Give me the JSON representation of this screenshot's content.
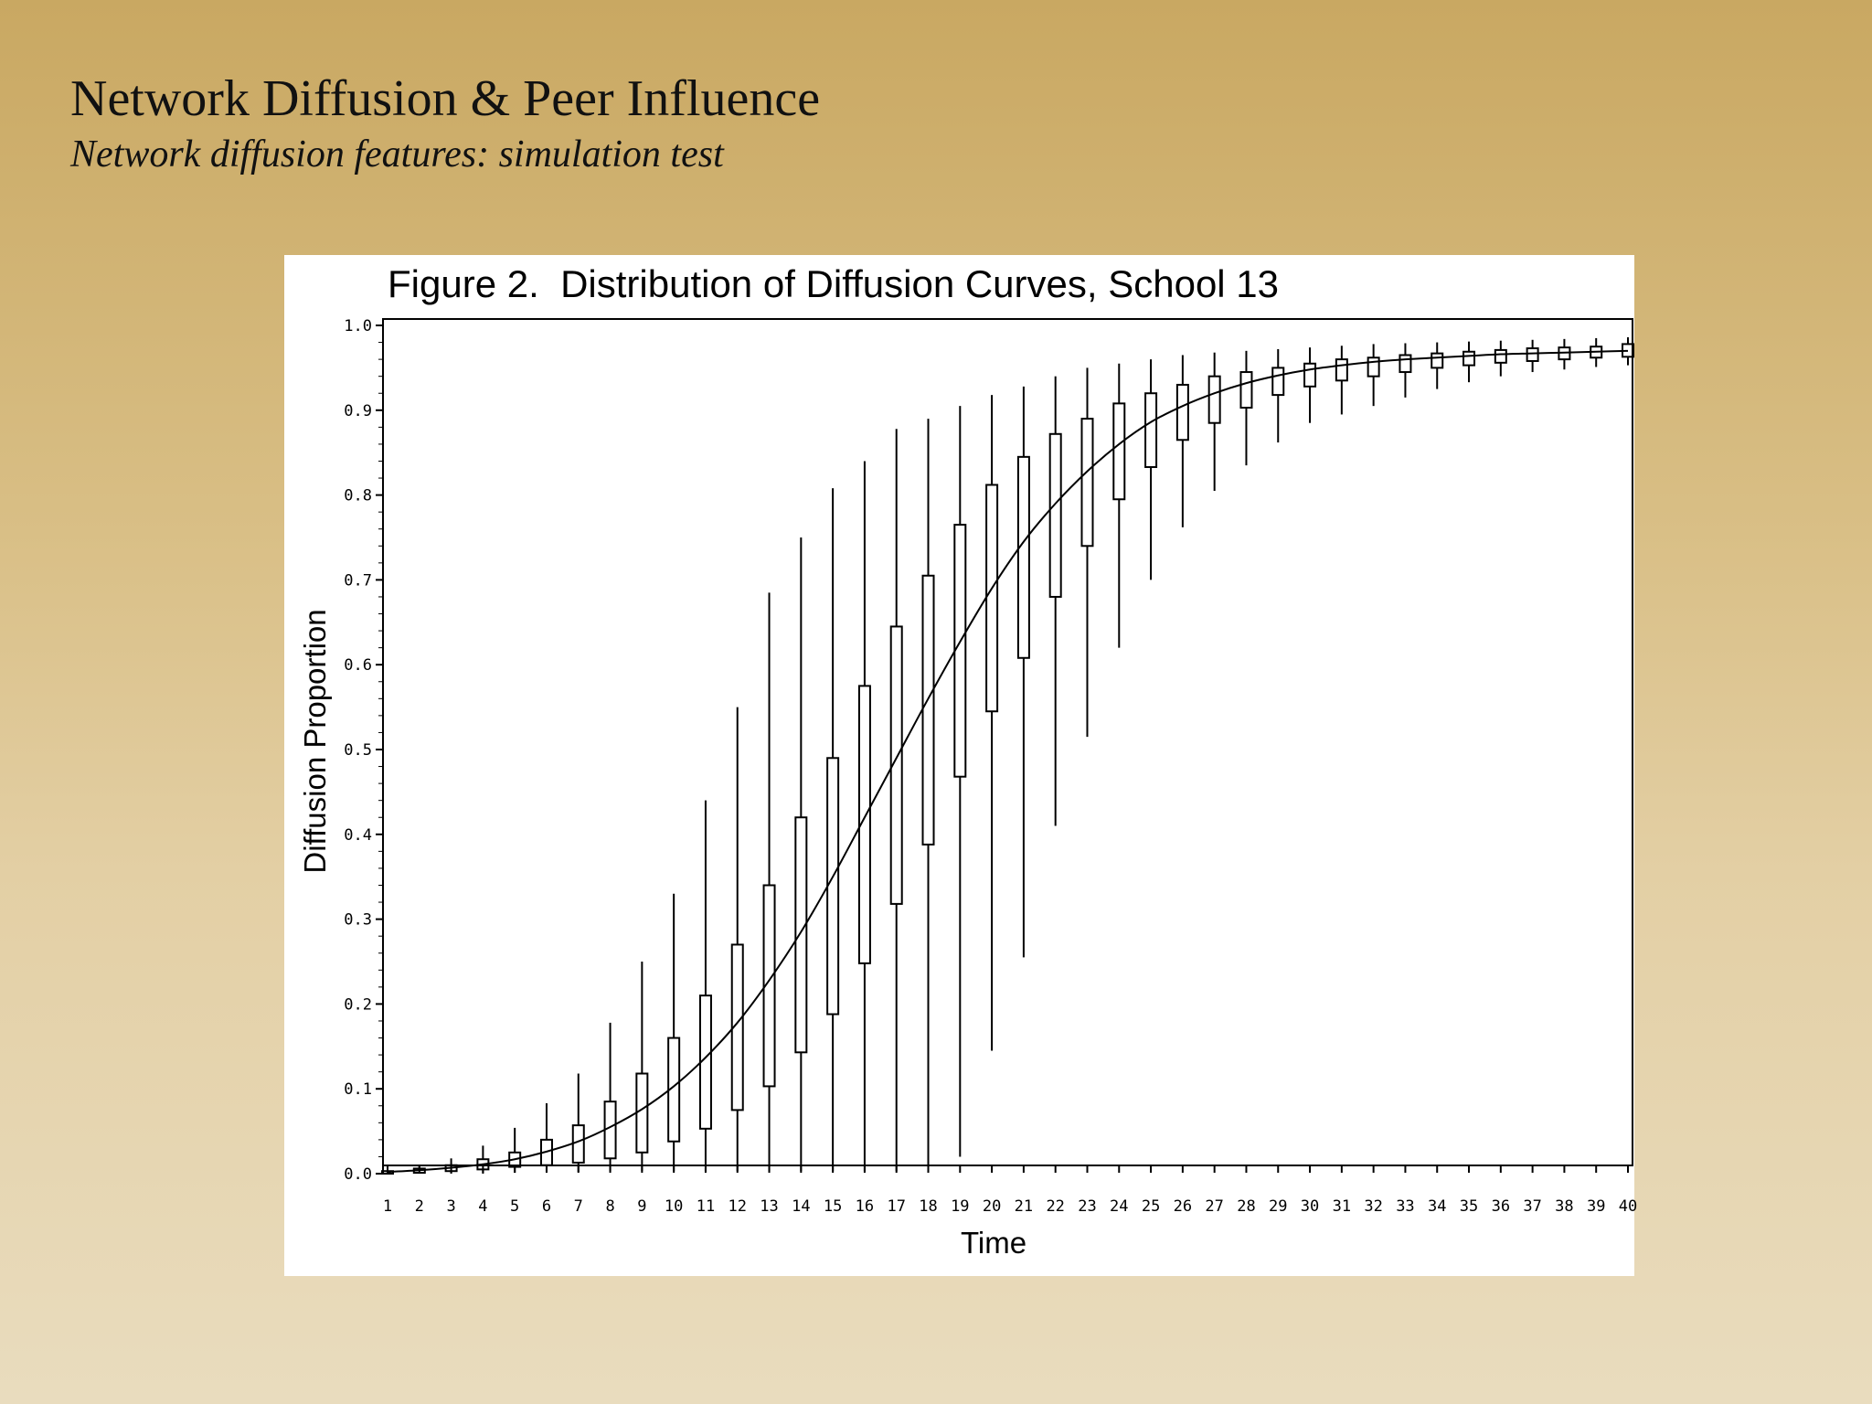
{
  "slide": {
    "title": "Network Diffusion & Peer Influence",
    "subtitle": "Network diffusion features: simulation test"
  },
  "chart_data": {
    "type": "boxplot",
    "title": "Figure 2.  Distribution of Diffusion Curves, School 13",
    "xlabel": "Time",
    "ylabel": "Diffusion Proportion",
    "ylim": [
      0,
      1.0
    ],
    "xlim": [
      1,
      40
    ],
    "y_ticks": [
      "0.0",
      "0.1",
      "0.2",
      "0.3",
      "0.4",
      "0.5",
      "0.6",
      "0.7",
      "0.8",
      "0.9",
      "1.0"
    ],
    "x_ticks": [
      "1",
      "2",
      "3",
      "4",
      "5",
      "6",
      "7",
      "8",
      "9",
      "10",
      "11",
      "12",
      "13",
      "14",
      "15",
      "16",
      "17",
      "18",
      "19",
      "20",
      "21",
      "22",
      "23",
      "24",
      "25",
      "26",
      "27",
      "28",
      "29",
      "30",
      "31",
      "32",
      "33",
      "34",
      "35",
      "36",
      "37",
      "38",
      "39",
      "40"
    ],
    "grid": false,
    "colors": {
      "stroke": "#000000",
      "background": "#ffffff"
    },
    "boxes": [
      {
        "t": 1,
        "min": 0.0,
        "q1": 0.0,
        "q3": 0.003,
        "max": 0.005
      },
      {
        "t": 2,
        "min": 0.0,
        "q1": 0.001,
        "q3": 0.006,
        "max": 0.01
      },
      {
        "t": 3,
        "min": 0.0,
        "q1": 0.003,
        "q3": 0.01,
        "max": 0.018
      },
      {
        "t": 4,
        "min": 0.0,
        "q1": 0.005,
        "q3": 0.017,
        "max": 0.033
      },
      {
        "t": 5,
        "min": 0.001,
        "q1": 0.008,
        "q3": 0.025,
        "max": 0.054
      },
      {
        "t": 6,
        "min": 0.002,
        "q1": 0.01,
        "q3": 0.04,
        "max": 0.083
      },
      {
        "t": 7,
        "min": 0.002,
        "q1": 0.013,
        "q3": 0.057,
        "max": 0.118
      },
      {
        "t": 8,
        "min": 0.003,
        "q1": 0.018,
        "q3": 0.085,
        "max": 0.178
      },
      {
        "t": 9,
        "min": 0.003,
        "q1": 0.025,
        "q3": 0.118,
        "max": 0.25
      },
      {
        "t": 10,
        "min": 0.003,
        "q1": 0.038,
        "q3": 0.16,
        "max": 0.33
      },
      {
        "t": 11,
        "min": 0.003,
        "q1": 0.053,
        "q3": 0.21,
        "max": 0.44
      },
      {
        "t": 12,
        "min": 0.003,
        "q1": 0.075,
        "q3": 0.27,
        "max": 0.55
      },
      {
        "t": 13,
        "min": 0.003,
        "q1": 0.103,
        "q3": 0.34,
        "max": 0.685
      },
      {
        "t": 14,
        "min": 0.003,
        "q1": 0.143,
        "q3": 0.42,
        "max": 0.75
      },
      {
        "t": 15,
        "min": 0.003,
        "q1": 0.188,
        "q3": 0.49,
        "max": 0.808
      },
      {
        "t": 16,
        "min": 0.003,
        "q1": 0.248,
        "q3": 0.575,
        "max": 0.84
      },
      {
        "t": 17,
        "min": 0.003,
        "q1": 0.318,
        "q3": 0.645,
        "max": 0.878
      },
      {
        "t": 18,
        "min": 0.003,
        "q1": 0.388,
        "q3": 0.705,
        "max": 0.89
      },
      {
        "t": 19,
        "min": 0.02,
        "q1": 0.468,
        "q3": 0.765,
        "max": 0.905
      },
      {
        "t": 20,
        "min": 0.145,
        "q1": 0.545,
        "q3": 0.812,
        "max": 0.918
      },
      {
        "t": 21,
        "min": 0.255,
        "q1": 0.608,
        "q3": 0.845,
        "max": 0.928
      },
      {
        "t": 22,
        "min": 0.41,
        "q1": 0.68,
        "q3": 0.872,
        "max": 0.94
      },
      {
        "t": 23,
        "min": 0.515,
        "q1": 0.74,
        "q3": 0.89,
        "max": 0.95
      },
      {
        "t": 24,
        "min": 0.62,
        "q1": 0.795,
        "q3": 0.908,
        "max": 0.955
      },
      {
        "t": 25,
        "min": 0.7,
        "q1": 0.833,
        "q3": 0.92,
        "max": 0.96
      },
      {
        "t": 26,
        "min": 0.762,
        "q1": 0.865,
        "q3": 0.93,
        "max": 0.965
      },
      {
        "t": 27,
        "min": 0.805,
        "q1": 0.885,
        "q3": 0.94,
        "max": 0.968
      },
      {
        "t": 28,
        "min": 0.835,
        "q1": 0.903,
        "q3": 0.945,
        "max": 0.97
      },
      {
        "t": 29,
        "min": 0.862,
        "q1": 0.918,
        "q3": 0.95,
        "max": 0.972
      },
      {
        "t": 30,
        "min": 0.885,
        "q1": 0.928,
        "q3": 0.955,
        "max": 0.974
      },
      {
        "t": 31,
        "min": 0.895,
        "q1": 0.935,
        "q3": 0.96,
        "max": 0.976
      },
      {
        "t": 32,
        "min": 0.905,
        "q1": 0.94,
        "q3": 0.962,
        "max": 0.978
      },
      {
        "t": 33,
        "min": 0.915,
        "q1": 0.945,
        "q3": 0.965,
        "max": 0.979
      },
      {
        "t": 34,
        "min": 0.925,
        "q1": 0.95,
        "q3": 0.967,
        "max": 0.98
      },
      {
        "t": 35,
        "min": 0.933,
        "q1": 0.953,
        "q3": 0.969,
        "max": 0.981
      },
      {
        "t": 36,
        "min": 0.94,
        "q1": 0.956,
        "q3": 0.971,
        "max": 0.982
      },
      {
        "t": 37,
        "min": 0.945,
        "q1": 0.958,
        "q3": 0.973,
        "max": 0.983
      },
      {
        "t": 38,
        "min": 0.948,
        "q1": 0.96,
        "q3": 0.974,
        "max": 0.984
      },
      {
        "t": 39,
        "min": 0.951,
        "q1": 0.962,
        "q3": 0.975,
        "max": 0.985
      },
      {
        "t": 40,
        "min": 0.953,
        "q1": 0.963,
        "q3": 0.978,
        "max": 0.986
      }
    ],
    "mean_curve": [
      0.002,
      0.004,
      0.007,
      0.011,
      0.017,
      0.026,
      0.038,
      0.055,
      0.076,
      0.103,
      0.137,
      0.178,
      0.228,
      0.285,
      0.35,
      0.42,
      0.49,
      0.56,
      0.627,
      0.69,
      0.745,
      0.79,
      0.828,
      0.86,
      0.886,
      0.905,
      0.92,
      0.932,
      0.941,
      0.948,
      0.953,
      0.957,
      0.96,
      0.962,
      0.964,
      0.966,
      0.967,
      0.968,
      0.969,
      0.97
    ]
  }
}
